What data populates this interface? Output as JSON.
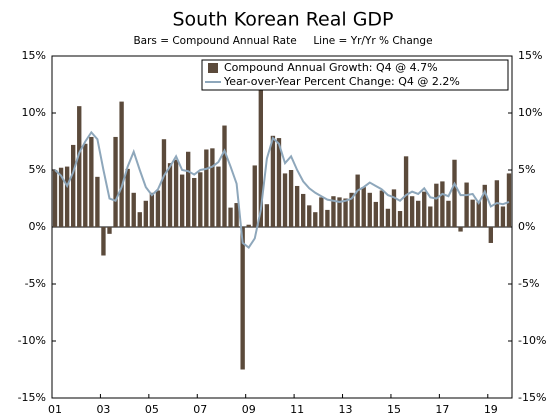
{
  "chart_data": {
    "type": "bar_line",
    "title": "South Korean Real GDP",
    "subtitle": "Bars = Compound Annual Rate     Line = Yr/Yr % Change",
    "categories": [
      "01",
      null,
      null,
      null,
      null,
      null,
      null,
      null,
      "03",
      null,
      null,
      null,
      null,
      null,
      null,
      null,
      "05",
      null,
      null,
      null,
      null,
      null,
      null,
      null,
      "07",
      null,
      null,
      null,
      null,
      null,
      null,
      null,
      "09",
      null,
      null,
      null,
      null,
      null,
      null,
      null,
      "11",
      null,
      null,
      null,
      null,
      null,
      null,
      null,
      "13",
      null,
      null,
      null,
      null,
      null,
      null,
      null,
      "15",
      null,
      null,
      null,
      null,
      null,
      null,
      null,
      "17",
      null,
      null,
      null,
      null,
      null,
      null,
      null,
      "19",
      null,
      null,
      null
    ],
    "series": [
      {
        "name": "Compound Annual Growth: Q4 @ 4.7%",
        "color": "#5b4a3b",
        "kind": "bar",
        "values": [
          5.0,
          5.2,
          5.3,
          7.2,
          10.6,
          7.3,
          7.9,
          4.4,
          -2.5,
          -0.6,
          7.9,
          11.0,
          5.1,
          3.0,
          1.3,
          2.3,
          3.0,
          3.2,
          7.7,
          5.6,
          5.9,
          4.6,
          6.6,
          4.3,
          4.8,
          6.8,
          6.9,
          5.3,
          8.9,
          1.7,
          2.1,
          -12.5,
          0.2,
          5.4,
          12.0,
          2.0,
          8.0,
          7.8,
          4.7,
          5.0,
          3.6,
          2.9,
          1.9,
          1.3,
          2.6,
          1.5,
          2.7,
          2.6,
          2.5,
          3.0,
          4.6,
          3.5,
          3.0,
          2.2,
          3.2,
          1.6,
          3.3,
          1.4,
          6.2,
          2.7,
          2.3,
          3.1,
          1.8,
          3.8,
          4.0,
          2.3,
          5.9,
          -0.4,
          3.9,
          2.4,
          2.3,
          3.7,
          -1.4,
          4.1,
          1.8,
          4.7
        ]
      },
      {
        "name": "Year-over-Year Percent Change: Q4 @ 2.2%",
        "color": "#8ea7bb",
        "kind": "line",
        "values": [
          5.0,
          4.5,
          3.6,
          4.8,
          6.5,
          7.5,
          8.3,
          7.7,
          5.0,
          2.5,
          2.3,
          3.5,
          5.3,
          6.6,
          5.0,
          3.5,
          2.8,
          3.3,
          4.5,
          5.3,
          6.2,
          5.0,
          4.9,
          4.6,
          5.0,
          5.1,
          5.3,
          5.7,
          6.7,
          5.3,
          3.8,
          -1.4,
          -1.8,
          -1.0,
          1.5,
          6.0,
          7.8,
          7.3,
          5.6,
          6.2,
          5.0,
          4.0,
          3.4,
          3.0,
          2.7,
          2.4,
          2.3,
          2.2,
          2.3,
          2.5,
          3.2,
          3.5,
          3.9,
          3.6,
          3.3,
          2.8,
          2.6,
          2.3,
          2.8,
          3.1,
          2.9,
          3.4,
          2.6,
          2.5,
          2.9,
          2.7,
          3.8,
          2.8,
          2.8,
          2.9,
          2.1,
          3.1,
          1.8,
          2.1,
          2.0,
          2.2
        ]
      }
    ],
    "ylim": [
      -15,
      15
    ],
    "yticks": [
      {
        "value": -15,
        "label": "-15%"
      },
      {
        "value": -10,
        "label": "-10%"
      },
      {
        "value": -5,
        "label": "-5%"
      },
      {
        "value": 0,
        "label": "0%"
      },
      {
        "value": 5,
        "label": "5%"
      },
      {
        "value": 10,
        "label": "10%"
      },
      {
        "value": 15,
        "label": "15%"
      }
    ],
    "y2lim": [
      -15,
      15
    ],
    "y2ticks": [
      {
        "value": -15,
        "label": "-15%"
      },
      {
        "value": -10,
        "label": "-10%"
      },
      {
        "value": -5,
        "label": "-5%"
      },
      {
        "value": 0,
        "label": "0%"
      },
      {
        "value": 5,
        "label": "5%"
      },
      {
        "value": 10,
        "label": "10%"
      },
      {
        "value": 15,
        "label": "15%"
      }
    ],
    "legend": "upper right"
  }
}
